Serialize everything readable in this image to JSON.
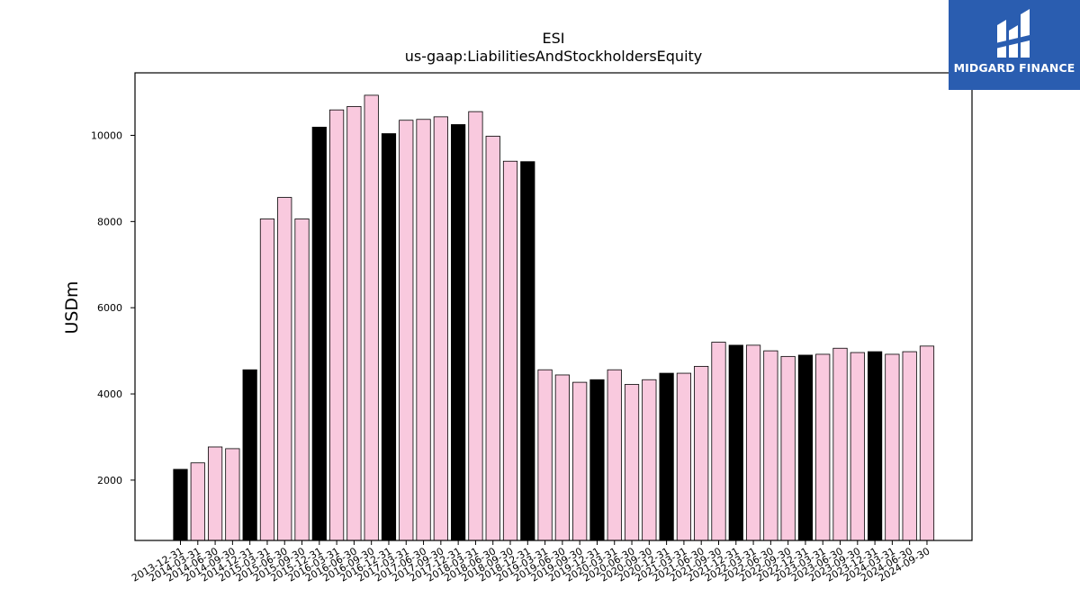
{
  "chart_data": {
    "type": "bar",
    "title": "ESI",
    "subtitle": "us-gaap:LiabilitiesAndStockholdersEquity",
    "ylabel": "USDm",
    "xlabel": "",
    "ylim": [
      600,
      11450
    ],
    "yticks": [
      2000,
      4000,
      6000,
      8000,
      10000
    ],
    "grid": false,
    "colors": {
      "fy": "#000000",
      "quarter": "#f9c9de",
      "edge": "#000000"
    },
    "categories": [
      "2013-12-31",
      "2014-03-31",
      "2014-06-30",
      "2014-09-30",
      "2014-12-31",
      "2015-03-31",
      "2015-06-30",
      "2015-09-30",
      "2015-12-31",
      "2016-03-31",
      "2016-06-30",
      "2016-09-30",
      "2016-12-31",
      "2017-03-31",
      "2017-06-30",
      "2017-09-30",
      "2017-12-31",
      "2018-03-31",
      "2018-06-30",
      "2018-09-30",
      "2018-12-31",
      "2019-03-31",
      "2019-06-30",
      "2019-09-30",
      "2019-12-31",
      "2020-03-31",
      "2020-06-30",
      "2020-09-30",
      "2020-12-31",
      "2021-03-31",
      "2021-06-30",
      "2021-09-30",
      "2021-12-31",
      "2022-03-31",
      "2022-06-30",
      "2022-09-30",
      "2022-12-31",
      "2023-03-31",
      "2023-06-30",
      "2023-09-30",
      "2023-12-31",
      "2024-03-31",
      "2024-06-30",
      "2024-09-30"
    ],
    "values": [
      2250,
      2400,
      2770,
      2730,
      4560,
      8060,
      8560,
      8060,
      10190,
      10590,
      10670,
      10930,
      10040,
      10350,
      10370,
      10430,
      10250,
      10550,
      9980,
      9400,
      9390,
      4560,
      4440,
      4270,
      4330,
      4560,
      4220,
      4330,
      4480,
      4480,
      4640,
      5200,
      5130,
      5130,
      5000,
      4870,
      4900,
      4920,
      5060,
      4960,
      4980,
      4920,
      4980,
      5110
    ],
    "highlight": [
      true,
      false,
      false,
      false,
      true,
      false,
      false,
      false,
      true,
      false,
      false,
      false,
      true,
      false,
      false,
      false,
      true,
      false,
      false,
      false,
      true,
      false,
      false,
      false,
      true,
      false,
      false,
      false,
      true,
      false,
      false,
      false,
      true,
      false,
      false,
      false,
      true,
      false,
      false,
      false,
      true,
      false,
      false,
      false
    ]
  },
  "logo": {
    "text": "MIDGARD FINANCE",
    "color": "#2a5db0"
  }
}
